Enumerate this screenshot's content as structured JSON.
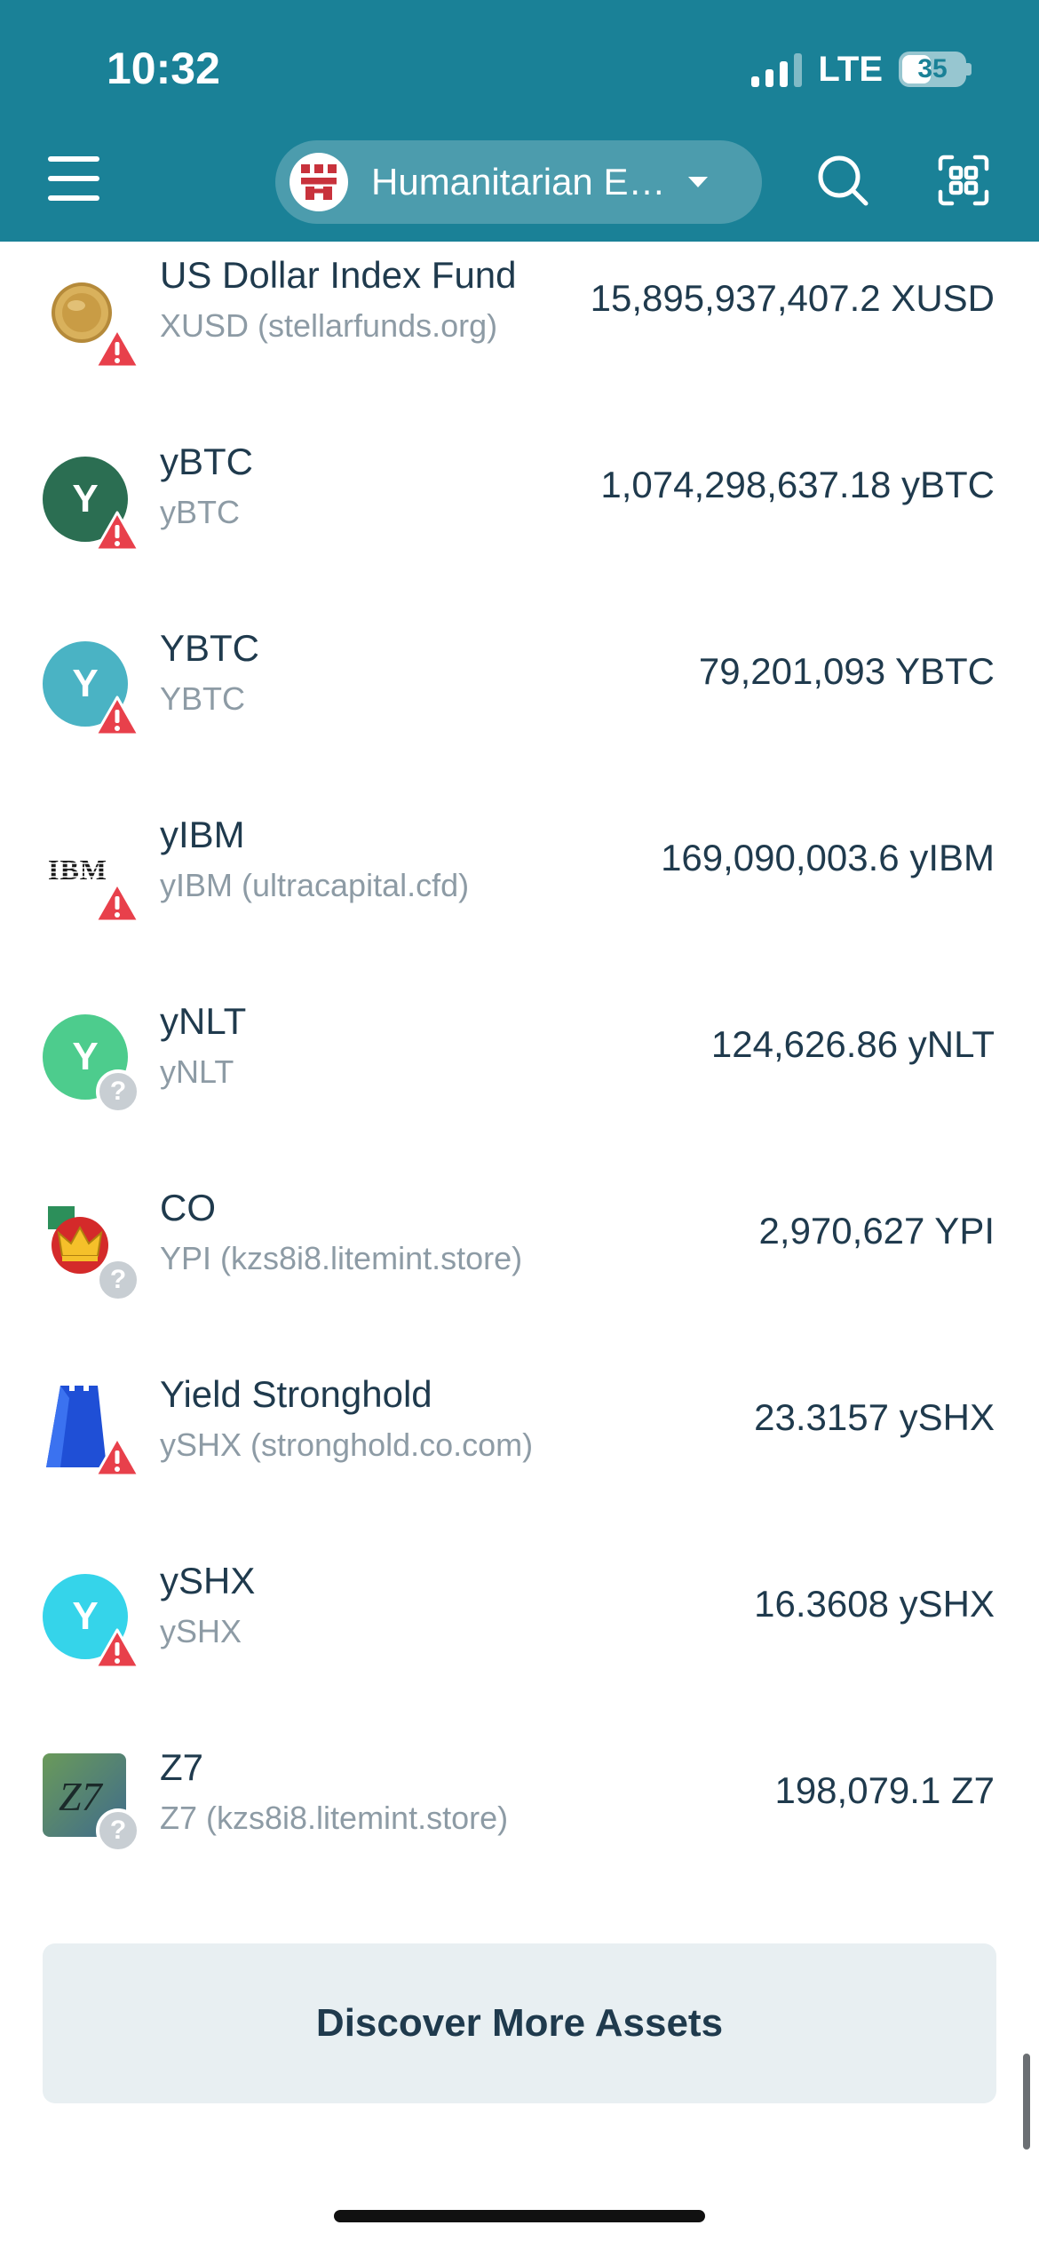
{
  "status_bar": {
    "time": "10:32",
    "network": "LTE",
    "battery": "35"
  },
  "header": {
    "account_name": "Humanitarian E…",
    "icons": [
      "menu-icon",
      "account-avatar-icon",
      "chevron-down-icon",
      "search-icon",
      "qr-scan-icon"
    ]
  },
  "assets": [
    {
      "name": "US Dollar Index Fund",
      "sub": "XUSD (stellarfunds.org)",
      "amount": "15,895,937,407.2 XUSD",
      "icon": "coin-icon",
      "badge": "warning-icon"
    },
    {
      "name": "yBTC",
      "sub": "yBTC",
      "amount": "1,074,298,637.18 yBTC",
      "icon": "letter-avatar",
      "letter": "Y",
      "color": "#2b6e52",
      "badge": "warning-icon"
    },
    {
      "name": "YBTC",
      "sub": "YBTC",
      "amount": "79,201,093 YBTC",
      "icon": "letter-avatar",
      "letter": "Y",
      "color": "#4ab3c4",
      "badge": "warning-icon"
    },
    {
      "name": "yIBM",
      "sub": "yIBM (ultracapital.cfd)",
      "amount": "169,090,003.6 yIBM",
      "icon": "ibm-logo-icon",
      "logo_text": "IBM",
      "badge": "warning-icon"
    },
    {
      "name": "yNLT",
      "sub": "yNLT",
      "amount": "124,626.86 yNLT",
      "icon": "letter-avatar",
      "letter": "Y",
      "color": "#4dcc8d",
      "badge": "unknown-icon"
    },
    {
      "name": "CO",
      "sub": "YPI (kzs8i8.litemint.store)",
      "amount": "2,970,627 YPI",
      "icon": "crown-icon",
      "badge": "unknown-icon"
    },
    {
      "name": "Yield Stronghold",
      "sub": "ySHX (stronghold.co.com)",
      "amount": "23.3157 ySHX",
      "icon": "castle-icon",
      "badge": "warning-icon"
    },
    {
      "name": "ySHX",
      "sub": "ySHX",
      "amount": "16.3608 ySHX",
      "icon": "letter-avatar",
      "letter": "Y",
      "color": "#35d4ea",
      "badge": "warning-icon"
    },
    {
      "name": "Z7",
      "sub": "Z7 (kzs8i8.litemint.store)",
      "amount": "198,079.1 Z7",
      "icon": "z7-logo-icon",
      "logo_text": "Z7",
      "badge": "unknown-icon"
    }
  ],
  "discover_button": "Discover More Assets",
  "colors": {
    "header": "#1a8197",
    "warning": "#e8404b",
    "text": "#1f3a4d",
    "subtext": "#8d9ba5"
  }
}
